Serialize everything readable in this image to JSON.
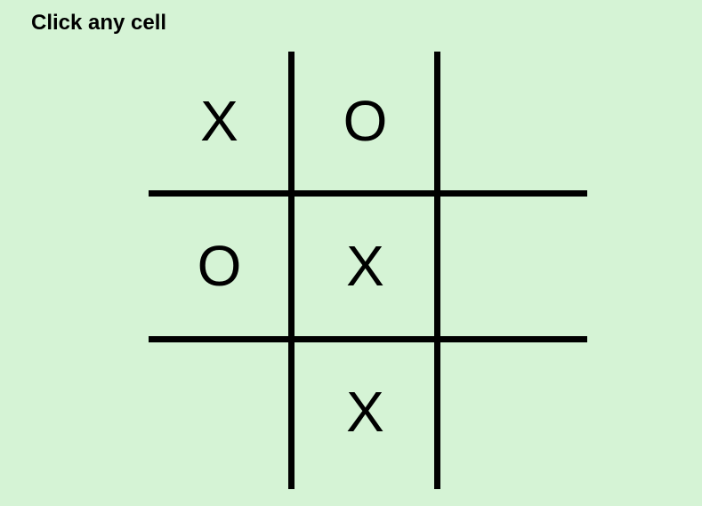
{
  "header": {
    "instruction": "Click any cell"
  },
  "board": {
    "cells": [
      [
        "X",
        "O",
        ""
      ],
      [
        "O",
        "X",
        ""
      ],
      [
        "",
        "X",
        ""
      ]
    ]
  },
  "colors": {
    "background": "#d5f3d5",
    "grid_line": "#000000",
    "mark": "#000000"
  }
}
